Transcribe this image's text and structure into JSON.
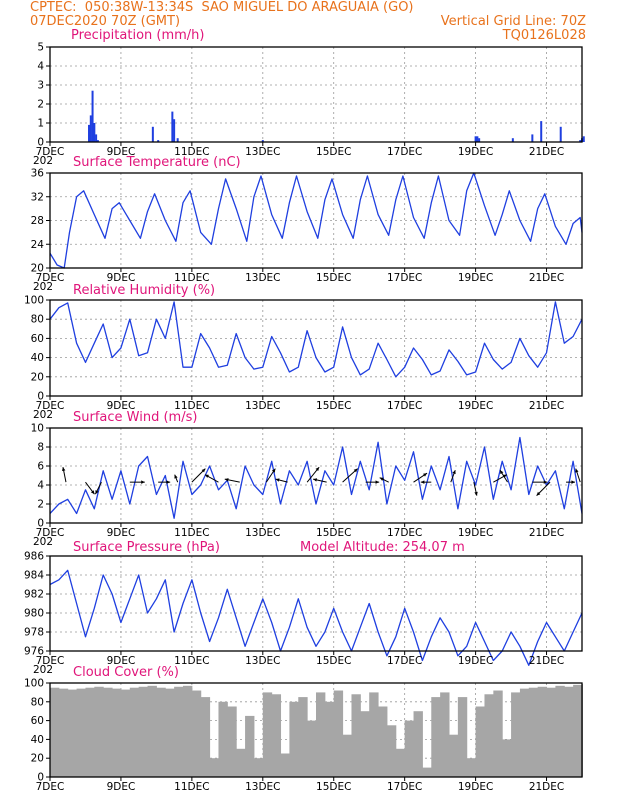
{
  "header": {
    "line1_left": "CPTEC:  050:38W-13:34S  SAO MIGUEL DO ARAGUAIA (GO)",
    "line2_left": "07DEC2020 70Z (GMT)",
    "line2_right": "Vertical Grid Line: 70Z",
    "line3_right": "TQ0126L028",
    "model_altitude": "Model Altitude: 254.07 m",
    "colors": {
      "header": "#e8721c",
      "panel_title": "#e0157a",
      "line": "#1f3fe0",
      "cloud": "#a6a6a6"
    }
  },
  "x_axis": {
    "tick_labels": [
      "7DEC",
      "9DEC",
      "11DEC",
      "13DEC",
      "15DEC",
      "17DEC",
      "19DEC",
      "21DEC"
    ],
    "year_fragment": "202"
  },
  "chart_data": [
    {
      "type": "bar",
      "title": "Precipitation (mm/h)",
      "ylim": [
        0,
        5
      ],
      "yticks": [
        0,
        1,
        2,
        3,
        4,
        5
      ],
      "grid": true,
      "x_unit": "days since 07DEC2020 00Z",
      "x": [
        1.1,
        1.15,
        1.2,
        1.25,
        1.3,
        1.35,
        2.9,
        3.05,
        3.45,
        3.5,
        3.6,
        6.0,
        12.0,
        12.05,
        12.1,
        13.05,
        13.6,
        13.85,
        14.4,
        14.95,
        15.0,
        15.05
      ],
      "values": [
        0.9,
        1.4,
        2.7,
        1.0,
        0.4,
        0.1,
        0.8,
        0.1,
        1.6,
        1.2,
        0.2,
        0.1,
        0.3,
        0.3,
        0.2,
        0.2,
        0.4,
        1.1,
        0.8,
        0.1,
        0.2,
        0.3
      ]
    },
    {
      "type": "line",
      "title": "Surface Temperature (nC)",
      "ylim": [
        20,
        36
      ],
      "yticks": [
        20,
        24,
        28,
        32,
        36
      ],
      "grid": true,
      "x": [
        0.0,
        0.2,
        0.4,
        0.55,
        0.75,
        0.95,
        1.25,
        1.55,
        1.75,
        1.95,
        2.25,
        2.55,
        2.75,
        2.95,
        3.25,
        3.55,
        3.75,
        3.95,
        4.25,
        4.55,
        4.75,
        4.95,
        5.25,
        5.55,
        5.75,
        5.95,
        6.25,
        6.55,
        6.75,
        6.95,
        7.25,
        7.55,
        7.75,
        7.95,
        8.25,
        8.55,
        8.75,
        8.95,
        9.25,
        9.55,
        9.75,
        9.95,
        10.25,
        10.55,
        10.75,
        10.95,
        11.25,
        11.55,
        11.75,
        11.95,
        12.25,
        12.55,
        12.75,
        12.95,
        13.25,
        13.55,
        13.75,
        13.95,
        14.25,
        14.55,
        14.75,
        14.95,
        15.0
      ],
      "values": [
        22.5,
        20.5,
        20.0,
        26.0,
        32.0,
        33.0,
        29.0,
        25.0,
        30.0,
        31.0,
        28.0,
        25.0,
        29.5,
        32.5,
        28.0,
        24.5,
        31.0,
        33.0,
        26.0,
        24.0,
        30.0,
        35.0,
        30.0,
        24.5,
        32.0,
        35.5,
        29.0,
        25.0,
        31.0,
        35.5,
        29.5,
        25.0,
        31.5,
        35.0,
        29.0,
        25.0,
        31.5,
        35.5,
        29.0,
        25.5,
        31.5,
        35.5,
        28.5,
        25.0,
        31.0,
        35.5,
        28.0,
        25.5,
        33.0,
        36.0,
        30.5,
        25.5,
        29.0,
        33.0,
        28.0,
        24.5,
        30.0,
        32.5,
        27.0,
        24.0,
        27.5,
        28.5,
        26.0
      ]
    },
    {
      "type": "line",
      "title": "Relative Humidity (%)",
      "ylim": [
        0,
        100
      ],
      "yticks": [
        0,
        20,
        40,
        60,
        80,
        100
      ],
      "grid": true,
      "x": [
        0.0,
        0.25,
        0.5,
        0.75,
        1.0,
        1.25,
        1.5,
        1.75,
        2.0,
        2.25,
        2.5,
        2.75,
        3.0,
        3.25,
        3.5,
        3.75,
        4.0,
        4.25,
        4.5,
        4.75,
        5.0,
        5.25,
        5.5,
        5.75,
        6.0,
        6.25,
        6.5,
        6.75,
        7.0,
        7.25,
        7.5,
        7.75,
        8.0,
        8.25,
        8.5,
        8.75,
        9.0,
        9.25,
        9.5,
        9.75,
        10.0,
        10.25,
        10.5,
        10.75,
        11.0,
        11.25,
        11.5,
        11.75,
        12.0,
        12.25,
        12.5,
        12.75,
        13.0,
        13.25,
        13.5,
        13.75,
        14.0,
        14.25,
        14.5,
        14.75,
        15.0
      ],
      "values": [
        80.0,
        92.0,
        97.0,
        55.0,
        35.0,
        55.0,
        75.0,
        40.0,
        50.0,
        80.0,
        42.0,
        45.0,
        80.0,
        60.0,
        98.0,
        30.0,
        30.0,
        65.0,
        50.0,
        30.0,
        32.0,
        65.0,
        40.0,
        28.0,
        30.0,
        62.0,
        45.0,
        25.0,
        30.0,
        68.0,
        40.0,
        25.0,
        30.0,
        72.0,
        40.0,
        22.0,
        28.0,
        55.0,
        38.0,
        20.0,
        30.0,
        50.0,
        38.0,
        22.0,
        26.0,
        48.0,
        36.0,
        22.0,
        25.0,
        55.0,
        38.0,
        28.0,
        35.0,
        60.0,
        42.0,
        30.0,
        45.0,
        98.0,
        55.0,
        62.0,
        80.0
      ]
    },
    {
      "type": "line",
      "title": "Surface Wind (m/s)",
      "ylim": [
        0,
        10
      ],
      "yticks": [
        0,
        2,
        4,
        6,
        8,
        10
      ],
      "grid": true,
      "x": [
        0.0,
        0.25,
        0.5,
        0.75,
        1.0,
        1.25,
        1.5,
        1.75,
        2.0,
        2.25,
        2.5,
        2.75,
        3.0,
        3.25,
        3.5,
        3.75,
        4.0,
        4.25,
        4.5,
        4.75,
        5.0,
        5.25,
        5.5,
        5.75,
        6.0,
        6.25,
        6.5,
        6.75,
        7.0,
        7.25,
        7.5,
        7.75,
        8.0,
        8.25,
        8.5,
        8.75,
        9.0,
        9.25,
        9.5,
        9.75,
        10.0,
        10.25,
        10.5,
        10.75,
        11.0,
        11.25,
        11.5,
        11.75,
        12.0,
        12.25,
        12.5,
        12.75,
        13.0,
        13.25,
        13.5,
        13.75,
        14.0,
        14.25,
        14.5,
        14.75,
        15.0
      ],
      "values": [
        1.0,
        2.0,
        2.5,
        1.0,
        3.5,
        1.5,
        5.5,
        2.5,
        5.5,
        2.0,
        6.0,
        7.0,
        3.0,
        5.0,
        0.5,
        6.5,
        3.0,
        4.0,
        6.0,
        3.5,
        4.5,
        1.5,
        6.0,
        4.0,
        3.0,
        6.5,
        2.0,
        5.5,
        4.0,
        6.5,
        2.0,
        5.5,
        4.0,
        8.0,
        3.0,
        6.5,
        3.5,
        8.5,
        2.0,
        6.0,
        4.5,
        7.5,
        2.5,
        6.0,
        3.5,
        7.0,
        1.5,
        6.5,
        4.0,
        8.0,
        2.5,
        6.5,
        3.5,
        9.0,
        3.0,
        6.0,
        4.0,
        5.5,
        1.5,
        6.5,
        1.0
      ],
      "vectors": {
        "x": [
          0.45,
          1.0,
          1.45,
          2.25,
          3.05,
          3.6,
          4.0,
          4.75,
          5.35,
          6.1,
          6.7,
          7.25,
          7.8,
          8.25,
          8.9,
          9.55,
          10.25,
          10.75,
          11.3,
          11.95,
          12.5,
          12.9,
          13.6,
          14.1,
          14.55,
          14.95
        ],
        "dx": [
          -0.2,
          0.6,
          -0.4,
          1.0,
          0.8,
          -0.2,
          0.9,
          -0.9,
          -1.0,
          0.6,
          -0.8,
          0.8,
          -0.9,
          1.0,
          0.9,
          -0.6,
          0.9,
          -0.7,
          0.3,
          0.2,
          0.9,
          -0.5,
          1.0,
          -0.9,
          0.6,
          -0.3
        ],
        "dy": [
          1.0,
          -0.8,
          -0.8,
          0.0,
          0.0,
          0.5,
          0.9,
          0.5,
          0.2,
          0.9,
          0.2,
          1.0,
          0.2,
          0.9,
          0.0,
          0.3,
          0.6,
          0.0,
          0.8,
          -0.9,
          0.5,
          0.8,
          0.0,
          -0.9,
          0.0,
          0.9
        ]
      }
    },
    {
      "type": "line",
      "title": "Surface Pressure (hPa)",
      "ylim": [
        976,
        986
      ],
      "yticks": [
        976,
        978,
        980,
        982,
        984,
        986
      ],
      "grid": true,
      "x": [
        0.0,
        0.25,
        0.5,
        0.75,
        1.0,
        1.25,
        1.5,
        1.75,
        2.0,
        2.25,
        2.5,
        2.75,
        3.0,
        3.25,
        3.5,
        3.75,
        4.0,
        4.25,
        4.5,
        4.75,
        5.0,
        5.25,
        5.5,
        5.75,
        6.0,
        6.25,
        6.5,
        6.75,
        7.0,
        7.25,
        7.5,
        7.75,
        8.0,
        8.25,
        8.5,
        8.75,
        9.0,
        9.25,
        9.5,
        9.75,
        10.0,
        10.25,
        10.5,
        10.75,
        11.0,
        11.25,
        11.5,
        11.75,
        12.0,
        12.25,
        12.5,
        12.75,
        13.0,
        13.25,
        13.5,
        13.75,
        14.0,
        14.25,
        14.5,
        14.75,
        15.0
      ],
      "values": [
        983.0,
        983.5,
        984.5,
        981.0,
        977.5,
        980.5,
        984.0,
        982.0,
        979.0,
        981.5,
        984.0,
        980.0,
        981.5,
        983.5,
        978.0,
        981.0,
        983.5,
        980.0,
        977.0,
        979.5,
        982.5,
        979.5,
        976.5,
        979.0,
        981.5,
        979.0,
        976.0,
        978.5,
        981.5,
        978.5,
        976.5,
        978.0,
        980.5,
        978.0,
        976.0,
        978.5,
        981.0,
        978.0,
        975.5,
        977.5,
        980.5,
        978.0,
        975.0,
        977.5,
        979.5,
        978.0,
        975.5,
        976.5,
        979.0,
        977.0,
        975.0,
        976.0,
        978.0,
        976.5,
        974.5,
        977.0,
        979.0,
        977.5,
        976.0,
        978.0,
        980.0
      ]
    },
    {
      "type": "area",
      "title": "Cloud Cover (%)",
      "ylim": [
        0,
        100
      ],
      "yticks": [
        0,
        20,
        40,
        60,
        80,
        100
      ],
      "grid": true,
      "x": [
        0.0,
        0.25,
        0.5,
        0.75,
        1.0,
        1.25,
        1.5,
        1.75,
        2.0,
        2.25,
        2.5,
        2.75,
        3.0,
        3.25,
        3.5,
        3.75,
        4.0,
        4.25,
        4.5,
        4.75,
        5.0,
        5.25,
        5.5,
        5.75,
        6.0,
        6.25,
        6.5,
        6.75,
        7.0,
        7.25,
        7.5,
        7.75,
        8.0,
        8.25,
        8.5,
        8.75,
        9.0,
        9.25,
        9.5,
        9.75,
        10.0,
        10.25,
        10.5,
        10.75,
        11.0,
        11.25,
        11.5,
        11.75,
        12.0,
        12.25,
        12.5,
        12.75,
        13.0,
        13.25,
        13.5,
        13.75,
        14.0,
        14.25,
        14.5,
        14.75,
        15.0
      ],
      "values": [
        95,
        94,
        93,
        94,
        95,
        96,
        95,
        94,
        93,
        95,
        96,
        97,
        95,
        94,
        96,
        97,
        92,
        85,
        20,
        80,
        75,
        30,
        65,
        20,
        90,
        88,
        25,
        80,
        85,
        60,
        90,
        80,
        92,
        45,
        88,
        70,
        90,
        75,
        55,
        30,
        60,
        70,
        10,
        85,
        90,
        45,
        85,
        20,
        75,
        88,
        92,
        40,
        90,
        94,
        95,
        96,
        95,
        97,
        96,
        98,
        99
      ]
    }
  ]
}
